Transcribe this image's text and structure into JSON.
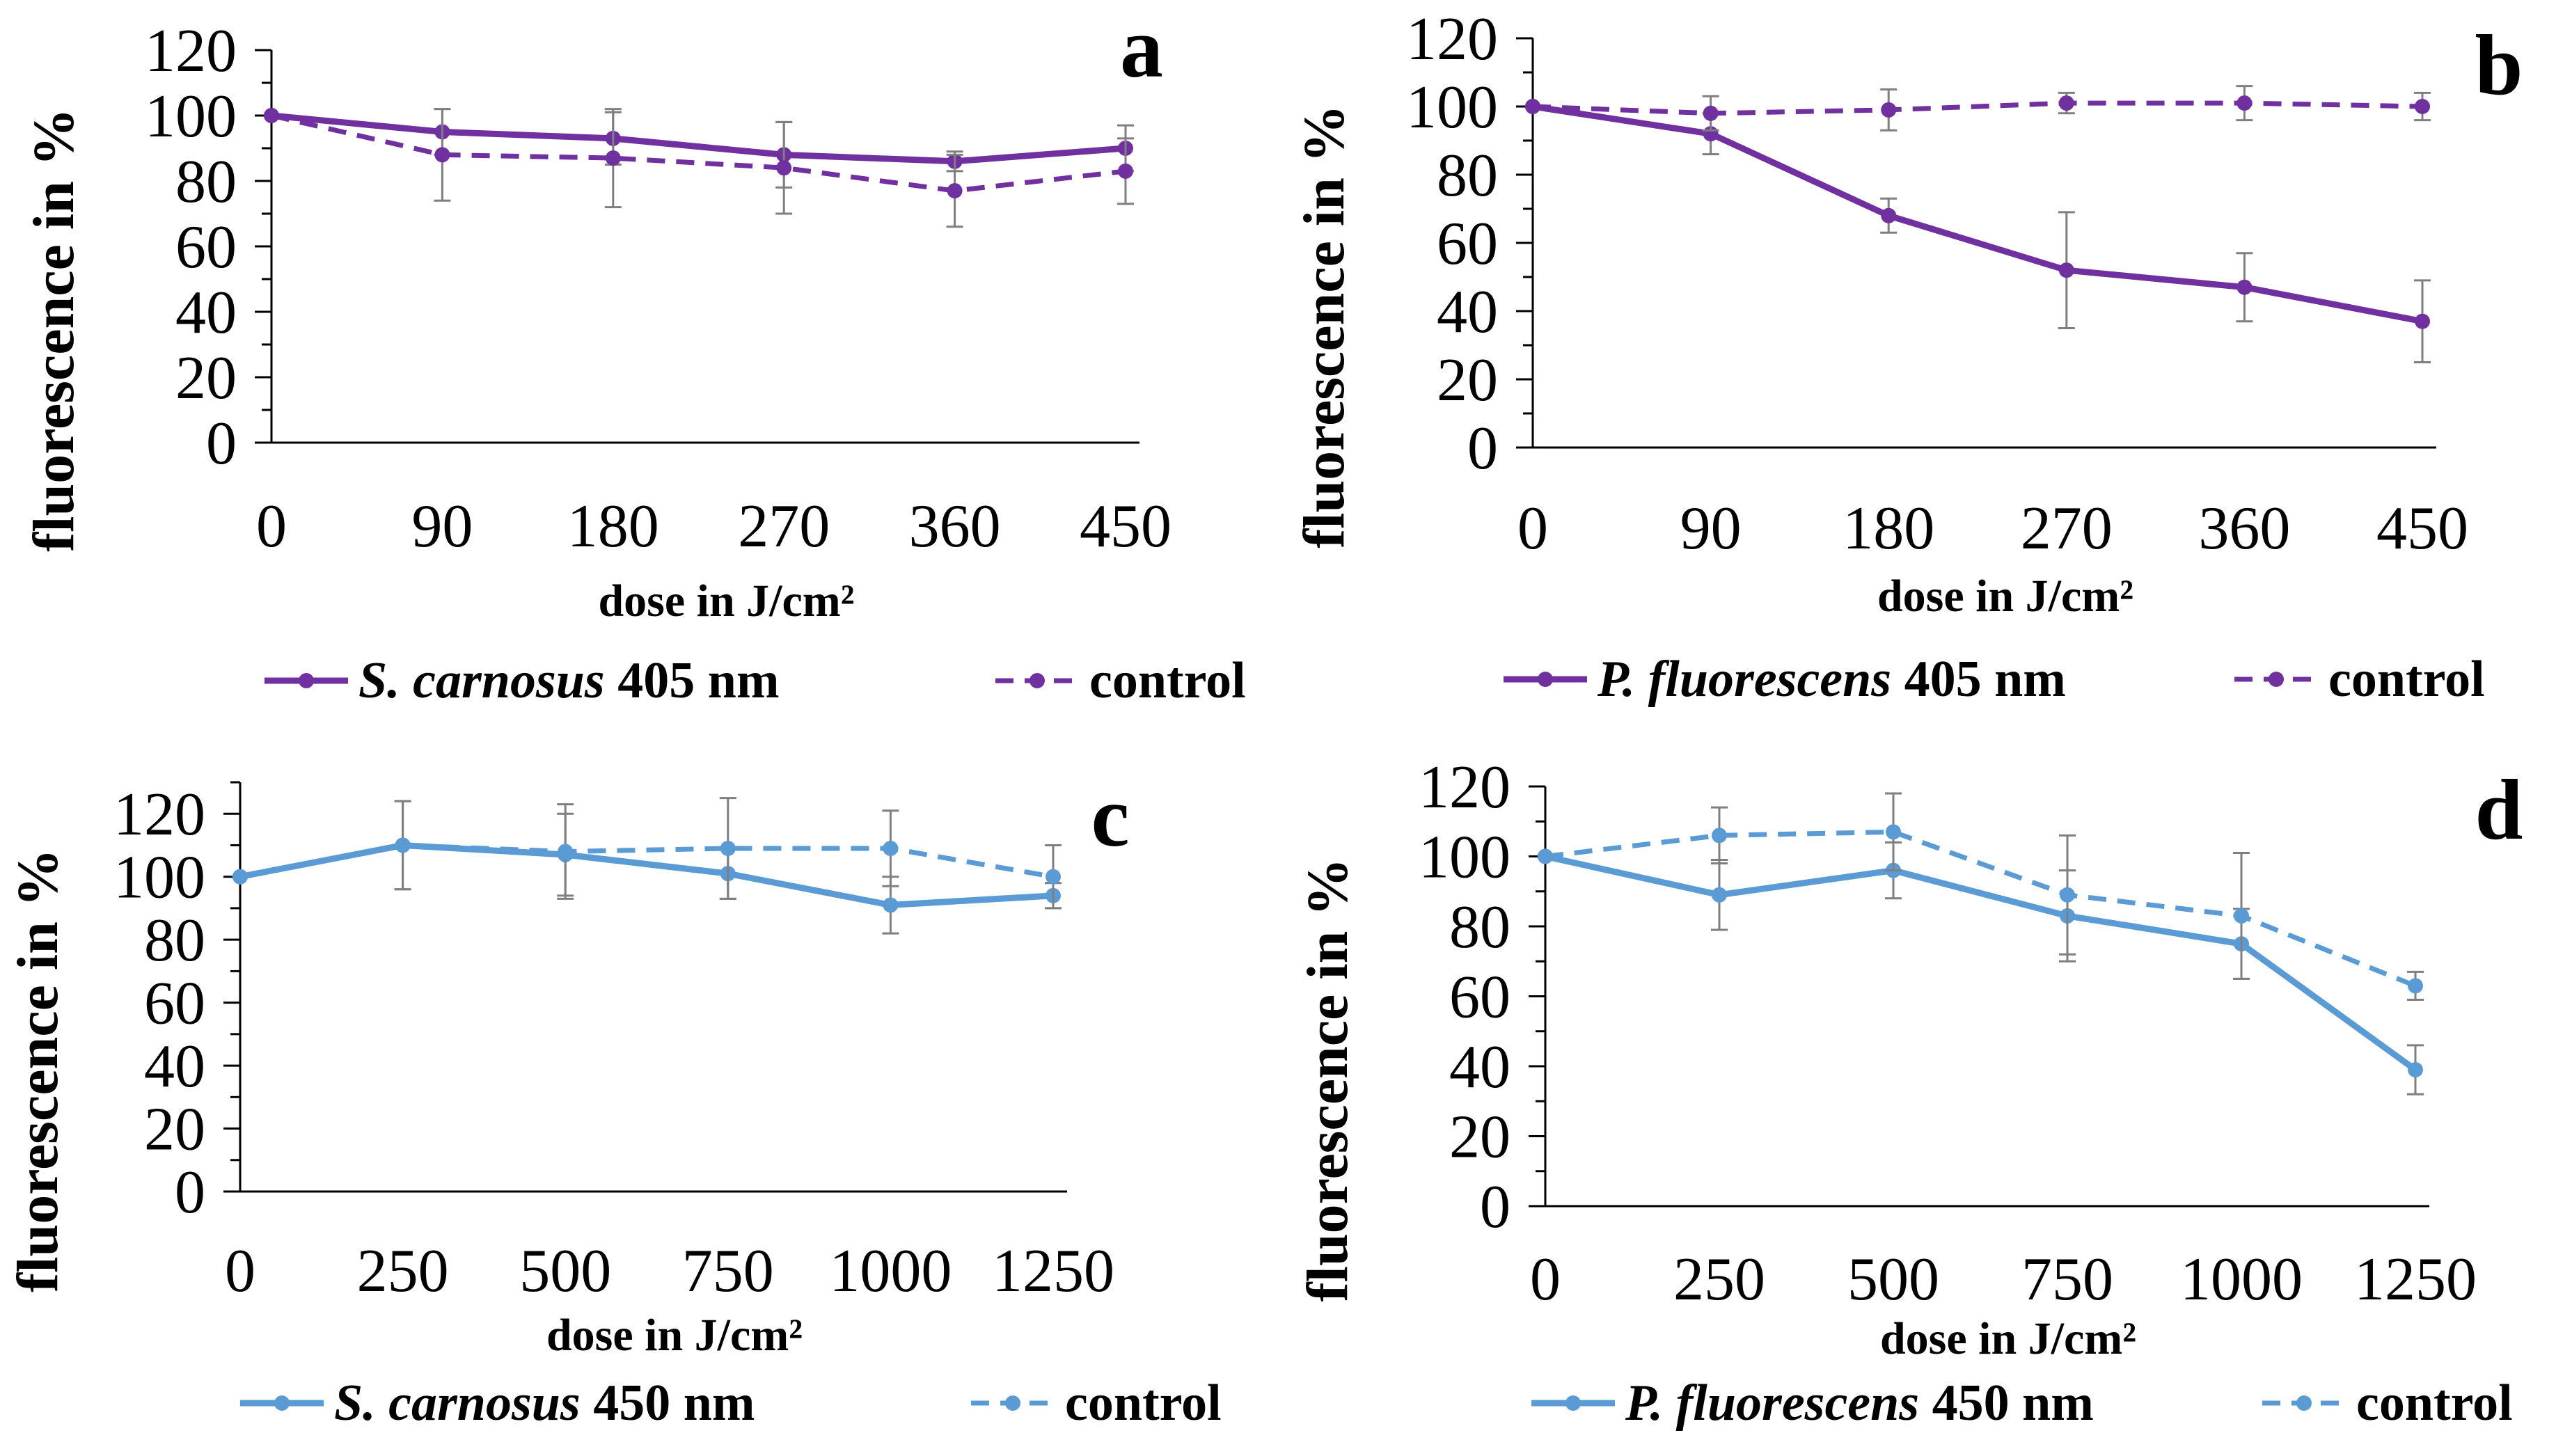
{
  "chart_data": [
    {
      "panel": "a",
      "type": "line",
      "color": "#7030a0",
      "ylabel": "fluorescence in %",
      "xlabel": "dose in J/cm²",
      "categories": [
        "0",
        "90",
        "180",
        "270",
        "360",
        "450"
      ],
      "ylim": [
        0,
        120
      ],
      "yticks": [
        0,
        20,
        40,
        60,
        80,
        100,
        120
      ],
      "series": [
        {
          "name_species": "S. carnosus",
          "name_suffix": " 405 nm",
          "style": "solid",
          "values": [
            100,
            95,
            93,
            88,
            86,
            90
          ],
          "errors": [
            0,
            7,
            8,
            10,
            3,
            7
          ]
        },
        {
          "name_species": "",
          "name_suffix": "control",
          "style": "dashed",
          "values": [
            100,
            88,
            87,
            84,
            77,
            83
          ],
          "errors": [
            0,
            14,
            15,
            14,
            11,
            10
          ]
        }
      ]
    },
    {
      "panel": "b",
      "type": "line",
      "color": "#7030a0",
      "ylabel": "fluorescence in %",
      "xlabel": "dose in J/cm²",
      "categories": [
        "0",
        "90",
        "180",
        "270",
        "360",
        "450"
      ],
      "ylim": [
        0,
        120
      ],
      "yticks": [
        0,
        20,
        40,
        60,
        80,
        100,
        120
      ],
      "series": [
        {
          "name_species": "P. fluorescens",
          "name_suffix": " 405 nm",
          "style": "solid",
          "values": [
            100,
            92,
            68,
            52,
            47,
            37
          ],
          "errors": [
            0,
            6,
            5,
            17,
            10,
            12
          ]
        },
        {
          "name_species": "",
          "name_suffix": "control",
          "style": "dashed",
          "values": [
            100,
            98,
            99,
            101,
            101,
            100
          ],
          "errors": [
            0,
            5,
            6,
            3,
            5,
            4
          ]
        }
      ]
    },
    {
      "panel": "c",
      "type": "line",
      "color": "#5b9bd5",
      "ylabel": "fluorescence in %",
      "xlabel": "dose in J/cm²",
      "categories": [
        "0",
        "250",
        "500",
        "750",
        "1000",
        "1250"
      ],
      "ylim": [
        0,
        130
      ],
      "yticks": [
        0,
        20,
        40,
        60,
        80,
        100,
        120
      ],
      "series": [
        {
          "name_species": "S. carnosus",
          "name_suffix": " 450 nm",
          "style": "solid",
          "values": [
            100,
            110,
            107,
            101,
            91,
            94
          ],
          "errors": [
            0,
            14,
            13,
            8,
            9,
            4
          ]
        },
        {
          "name_species": "",
          "name_suffix": "control",
          "style": "dashed",
          "values": [
            100,
            110,
            108,
            109,
            109,
            100
          ],
          "errors": [
            0,
            14,
            15,
            16,
            12,
            10
          ]
        }
      ]
    },
    {
      "panel": "d",
      "type": "line",
      "color": "#5b9bd5",
      "ylabel": "fluorescence in %",
      "xlabel": "dose in J/cm²",
      "categories": [
        "0",
        "250",
        "500",
        "750",
        "1000",
        "1250"
      ],
      "ylim": [
        0,
        120
      ],
      "yticks": [
        0,
        20,
        40,
        60,
        80,
        100,
        120
      ],
      "series": [
        {
          "name_species": "P. fluorescens",
          "name_suffix": " 450 nm",
          "style": "solid",
          "values": [
            100,
            89,
            96,
            83,
            75,
            39
          ],
          "errors": [
            0,
            10,
            8,
            13,
            10,
            7
          ]
        },
        {
          "name_species": "",
          "name_suffix": "control",
          "style": "dashed",
          "values": [
            100,
            106,
            107,
            89,
            83,
            63
          ],
          "errors": [
            0,
            8,
            11,
            17,
            18,
            4
          ]
        }
      ]
    }
  ]
}
